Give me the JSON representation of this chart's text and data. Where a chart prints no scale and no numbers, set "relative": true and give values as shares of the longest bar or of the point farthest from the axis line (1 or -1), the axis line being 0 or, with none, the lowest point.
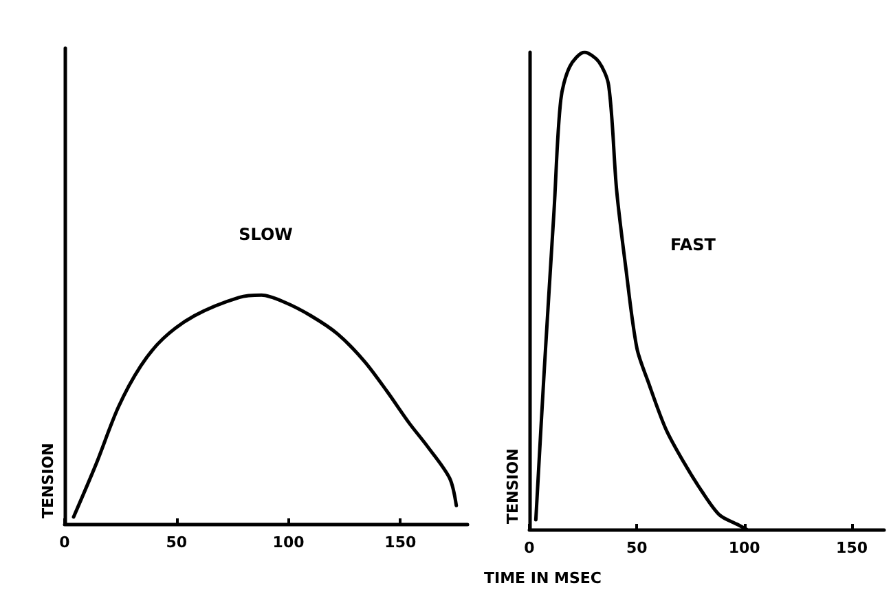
{
  "chart_data": [
    {
      "type": "line",
      "ylabel": "TENSION",
      "relative": true,
      "xlim": [
        0,
        180
      ],
      "xticks": [
        0,
        50,
        100,
        150
      ],
      "grid": false,
      "legend": false,
      "marker": "none",
      "line_style": "solid",
      "series": [
        {
          "name": "SLOW",
          "color": "#000000",
          "x": [
            4,
            14,
            24,
            34,
            44,
            58,
            78,
            88,
            98,
            110,
            122,
            134,
            144,
            154,
            162,
            172,
            175
          ],
          "values": [
            0.03,
            0.26,
            0.51,
            0.69,
            0.81,
            0.91,
            0.99,
            1,
            0.97,
            0.91,
            0.83,
            0.71,
            0.58,
            0.44,
            0.34,
            0.2,
            0.08
          ]
        }
      ]
    },
    {
      "type": "line",
      "ylabel": "TENSION",
      "xlabel": "TIME IN MSEC",
      "relative": true,
      "xlim": [
        0,
        165
      ],
      "xticks": [
        0,
        50,
        100,
        150
      ],
      "grid": false,
      "legend": false,
      "marker": "none",
      "line_style": "solid",
      "series": [
        {
          "name": "FAST",
          "color": "#000000",
          "x": [
            3,
            7,
            11.5,
            14.6,
            18.8,
            25.6,
            32.3,
            36.9,
            40.6,
            44.8,
            50,
            55.2,
            63.5,
            71.9,
            80.2,
            88.5,
            96.9,
            101
          ],
          "values": [
            0.02,
            0.34,
            0.67,
            0.9,
            0.97,
            1,
            0.98,
            0.93,
            0.71,
            0.55,
            0.38,
            0.31,
            0.21,
            0.14,
            0.08,
            0.03,
            0.01,
            0
          ]
        }
      ]
    }
  ]
}
